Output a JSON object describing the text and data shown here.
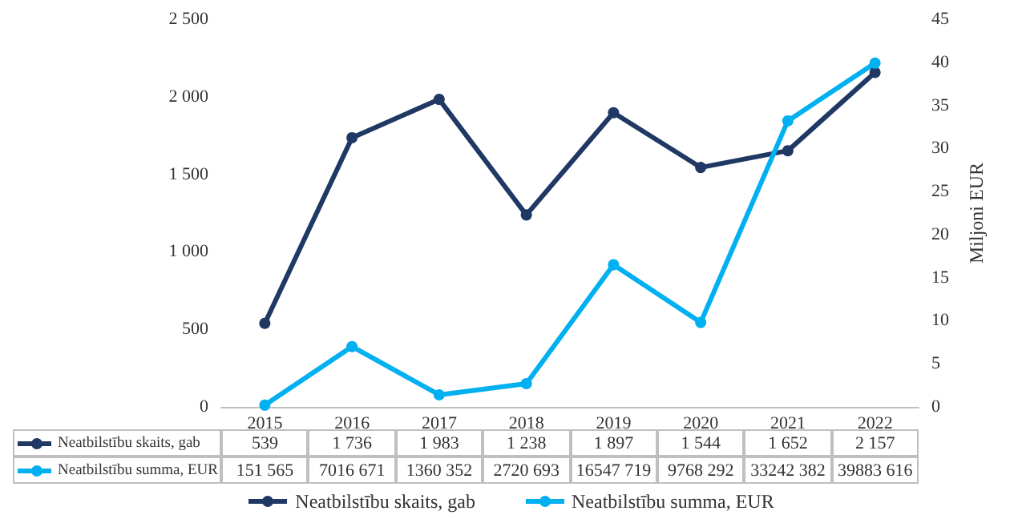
{
  "chart_data": {
    "type": "line",
    "categories": [
      "2015",
      "2016",
      "2017",
      "2018",
      "2019",
      "2020",
      "2021",
      "2022"
    ],
    "series": [
      {
        "name": "Neatbilstību skaits, gab",
        "color": "#1f3864",
        "values": [
          539,
          1736,
          1983,
          1238,
          1897,
          1544,
          1652,
          2157
        ],
        "value_labels": [
          "539",
          "1 736",
          "1 983",
          "1 238",
          "1 897",
          "1 544",
          "1 652",
          "2 157"
        ]
      },
      {
        "name": "Neatbilstību summa, EUR",
        "color": "#00b0f0",
        "axis": "y2",
        "values": [
          0.2,
          7.0,
          1.4,
          2.7,
          16.5,
          9.8,
          33.2,
          39.9
        ]
      }
    ],
    "y2label": "Miljoni EUR",
    "ylim": [
      0,
      2500
    ],
    "yticks": [
      0,
      {
        "value": 500,
        "label": "500"
      },
      {
        "value": 1000,
        "label": "1 000"
      },
      {
        "value": 1500,
        "label": "1 500"
      },
      {
        "value": 2000,
        "label": "2 000"
      },
      {
        "value": 2500,
        "label": "2 500"
      }
    ],
    "y2lim": [
      0,
      45
    ],
    "y2ticks": [
      0,
      5,
      10,
      15,
      20,
      25,
      30,
      35,
      40,
      45
    ],
    "annotations": [
      "151 565",
      "7016 671",
      "1360 352",
      "2720 693",
      "16547 719",
      "9768 292",
      "33242 382",
      "39883 616"
    ],
    "grid": false,
    "legend": "bottom",
    "marker": "circle",
    "line_style": "solid"
  }
}
